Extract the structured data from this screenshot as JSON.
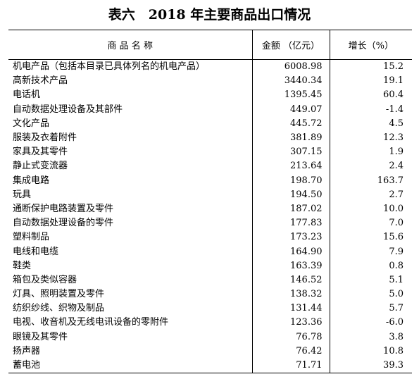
{
  "header": {
    "title": "表六　2018 年主要商品出口情况"
  },
  "table": {
    "columns": [
      "商 品 名 称",
      "金额 （亿元）",
      "增长（%）"
    ],
    "rows": [
      [
        "机电产品（包括本目录已具体列名的机电产品）",
        "6008.98",
        "15.2"
      ],
      [
        "高新技术产品",
        "3440.34",
        "19.1"
      ],
      [
        "电话机",
        "1395.45",
        "60.4"
      ],
      [
        "自动数据处理设备及其部件",
        "449.07",
        "-1.4"
      ],
      [
        "文化产品",
        "445.72",
        "4.5"
      ],
      [
        "服装及衣着附件",
        "381.89",
        "12.3"
      ],
      [
        "家具及其零件",
        "307.15",
        "1.9"
      ],
      [
        "静止式变流器",
        "213.64",
        "2.4"
      ],
      [
        "集成电路",
        "198.70",
        "163.7"
      ],
      [
        "玩具",
        "194.50",
        "2.7"
      ],
      [
        "通断保护电路装置及零件",
        "187.02",
        "10.0"
      ],
      [
        "自动数据处理设备的零件",
        "177.83",
        "7.0"
      ],
      [
        "塑料制品",
        "173.23",
        "15.6"
      ],
      [
        "电线和电缆",
        "164.90",
        "7.9"
      ],
      [
        "鞋类",
        "163.39",
        "0.8"
      ],
      [
        "箱包及类似容器",
        "146.52",
        "5.1"
      ],
      [
        "灯具、照明装置及零件",
        "138.32",
        "5.0"
      ],
      [
        "纺织纱线、织物及制品",
        "131.44",
        "5.7"
      ],
      [
        "电视、收音机及无线电讯设备的零附件",
        "123.36",
        "-6.0"
      ],
      [
        "眼镜及其零件",
        "76.78",
        "3.8"
      ],
      [
        "扬声器",
        "76.42",
        "10.8"
      ],
      [
        "蓄电池",
        "71.71",
        "39.3"
      ]
    ]
  }
}
